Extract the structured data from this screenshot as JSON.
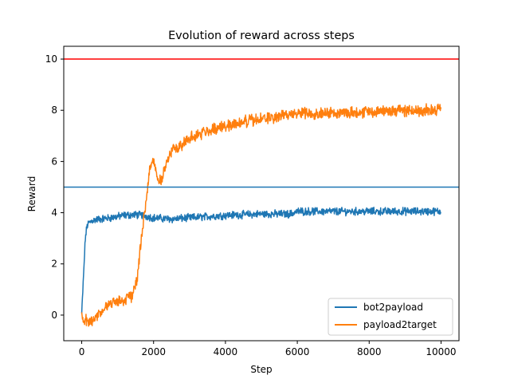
{
  "chart_data": {
    "type": "line",
    "title": "Evolution of reward across steps",
    "xlabel": "Step",
    "ylabel": "Reward",
    "xlim": [
      -500,
      10500
    ],
    "ylim": [
      -1.0,
      10.5
    ],
    "xticks": [
      0,
      2000,
      4000,
      6000,
      8000,
      10000
    ],
    "xtick_labels": [
      "0",
      "2000",
      "4000",
      "6000",
      "8000",
      "10000"
    ],
    "yticks": [
      0,
      2,
      4,
      6,
      8,
      10
    ],
    "ytick_labels": [
      "0",
      "2",
      "4",
      "6",
      "8",
      "10"
    ],
    "grid": false,
    "legend_position": "lower right",
    "series": [
      {
        "name": "bot2payload",
        "color": "#1f77b4",
        "noise": 0.12,
        "x": [
          0,
          50,
          100,
          150,
          200,
          300,
          500,
          800,
          1000,
          1200,
          1500,
          1700,
          2000,
          2500,
          3000,
          3500,
          4000,
          5000,
          5800,
          6000,
          7000,
          8000,
          9000,
          10000
        ],
        "y": [
          0.05,
          1.5,
          3.0,
          3.5,
          3.6,
          3.7,
          3.75,
          3.8,
          3.85,
          3.9,
          3.92,
          3.9,
          3.8,
          3.75,
          3.8,
          3.85,
          3.9,
          3.95,
          3.95,
          4.05,
          4.05,
          4.05,
          4.05,
          4.05
        ]
      },
      {
        "name": "payload2target",
        "color": "#ff7f0e",
        "noise": 0.18,
        "x": [
          0,
          100,
          200,
          300,
          400,
          600,
          800,
          1000,
          1200,
          1400,
          1550,
          1650,
          1700,
          1800,
          1900,
          2000,
          2100,
          2200,
          2300,
          2500,
          3000,
          3500,
          4000,
          4500,
          5000,
          5500,
          6000,
          7000,
          8000,
          9000,
          10000
        ],
        "y": [
          -0.1,
          -0.2,
          -0.3,
          -0.15,
          -0.05,
          0.2,
          0.45,
          0.55,
          0.6,
          0.75,
          1.5,
          2.8,
          3.5,
          4.6,
          5.8,
          6.1,
          5.4,
          5.2,
          5.7,
          6.4,
          6.9,
          7.2,
          7.4,
          7.55,
          7.65,
          7.75,
          7.9,
          7.9,
          7.95,
          8.0,
          8.0
        ]
      }
    ],
    "reference_lines": [
      {
        "orientation": "horizontal",
        "y": 10,
        "color": "#ff0000"
      },
      {
        "orientation": "horizontal",
        "y": 5,
        "color": "#1f77b4"
      }
    ]
  }
}
